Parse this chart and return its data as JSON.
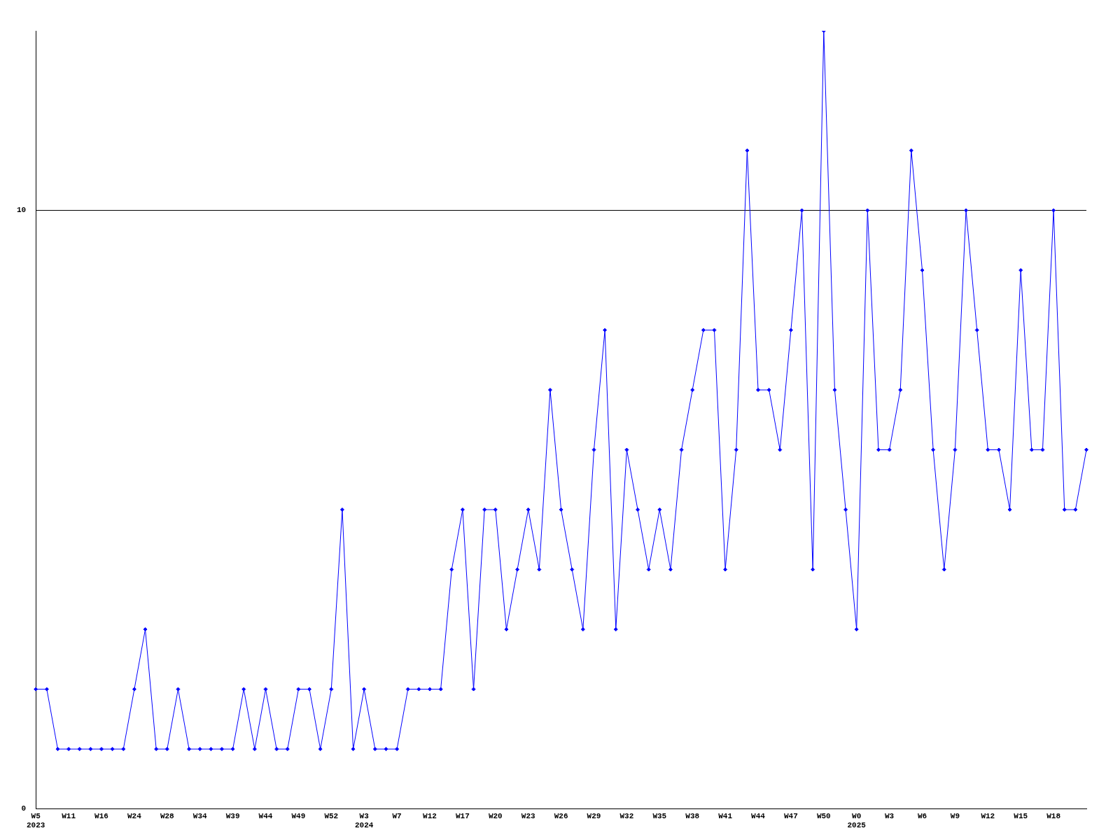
{
  "chart_data": {
    "type": "line",
    "categories": [
      "W5\n2023",
      null,
      null,
      "W11",
      null,
      null,
      "W16",
      null,
      null,
      "W24",
      null,
      null,
      "W28",
      null,
      null,
      "W34",
      null,
      null,
      "W39",
      null,
      null,
      "W44",
      null,
      null,
      "W49",
      null,
      null,
      "W52",
      null,
      null,
      "W3\n2024",
      null,
      null,
      "W7",
      null,
      null,
      "W12",
      null,
      null,
      "W17",
      null,
      null,
      "W20",
      null,
      null,
      "W23",
      null,
      null,
      "W26",
      null,
      null,
      "W29",
      null,
      null,
      "W32",
      null,
      null,
      "W35",
      null,
      null,
      "W38",
      null,
      null,
      "W41",
      null,
      null,
      "W44",
      null,
      null,
      "W47",
      null,
      null,
      "W50",
      null,
      null,
      "W0\n2025",
      null,
      null,
      "W3",
      null,
      null,
      "W6",
      null,
      null,
      "W9",
      null,
      null,
      "W12",
      null,
      null,
      "W15",
      null,
      null,
      "W18",
      null,
      null,
      null
    ],
    "series": [
      {
        "color": "#0000ff",
        "values": [
          2,
          2,
          1,
          1,
          1,
          1,
          1,
          1,
          1,
          2,
          3,
          1,
          1,
          2,
          1,
          1,
          1,
          1,
          1,
          2,
          1,
          2,
          1,
          1,
          2,
          2,
          1,
          2,
          5,
          1,
          2,
          1,
          1,
          1,
          2,
          2,
          2,
          2,
          4,
          5,
          2,
          5,
          5,
          3,
          4,
          5,
          4,
          7,
          5,
          4,
          3,
          6,
          8,
          3,
          6,
          5,
          4,
          5,
          4,
          6,
          7,
          8,
          8,
          4,
          6,
          11,
          7,
          7,
          6,
          8,
          10,
          4,
          13,
          7,
          5,
          3,
          10,
          6,
          6,
          7,
          11,
          9,
          6,
          4,
          6,
          10,
          8,
          6,
          6,
          5,
          9,
          6,
          6,
          10,
          5,
          5,
          6
        ]
      }
    ],
    "ylim": [
      0,
      13
    ],
    "yticks": [
      0,
      10
    ],
    "grid": "y",
    "marker": "diamond"
  }
}
